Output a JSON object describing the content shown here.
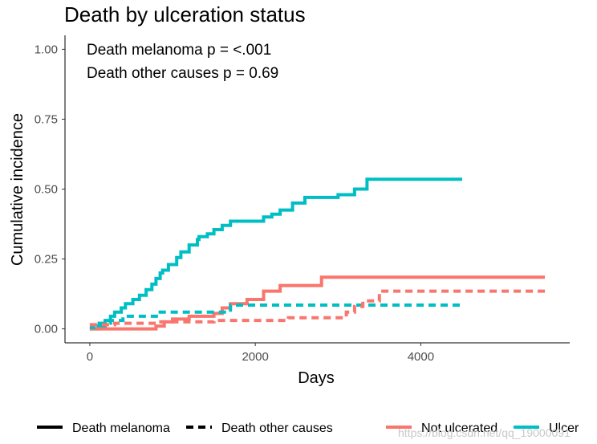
{
  "chart_data": {
    "type": "line",
    "step": true,
    "title": "Death by ulceration status",
    "xlabel": "Days",
    "ylabel": "Cumulative incidence",
    "xlim": [
      -300,
      5800
    ],
    "ylim": [
      -0.05,
      1.05
    ],
    "x_ticks": [
      0,
      2000,
      4000
    ],
    "x_tick_labels": [
      "0",
      "2000",
      "4000"
    ],
    "y_ticks": [
      0.0,
      0.25,
      0.5,
      0.75,
      1.0
    ],
    "y_tick_labels": [
      "0.00",
      "0.25",
      "0.50",
      "0.75",
      "1.00"
    ],
    "grid": false,
    "annotations": [
      "Death melanoma p = <.001",
      "Death other causes p = 0.69"
    ],
    "legend": {
      "position": "bottom",
      "linetype_entries": [
        {
          "label": "Death melanoma",
          "dash": "solid"
        },
        {
          "label": "Death other causes",
          "dash": "dashed"
        }
      ],
      "color_entries": [
        {
          "label": "Not ulcerated",
          "color": "#F8766D"
        },
        {
          "label": "Ulcer",
          "color": "#00BFC4"
        }
      ]
    },
    "series": [
      {
        "name": "Ulcer - Death melanoma",
        "group": "Ulcer",
        "cause": "Death melanoma",
        "color": "#00BFC4",
        "dash": "solid",
        "x": [
          0,
          100,
          185,
          250,
          300,
          380,
          430,
          520,
          600,
          680,
          750,
          800,
          850,
          880,
          950,
          1050,
          1100,
          1200,
          1300,
          1320,
          1420,
          1500,
          1600,
          1700,
          2100,
          2200,
          2300,
          2450,
          2600,
          3000,
          3200,
          3350,
          4500
        ],
        "y": [
          0.0,
          0.01,
          0.03,
          0.045,
          0.06,
          0.075,
          0.09,
          0.105,
          0.12,
          0.14,
          0.16,
          0.18,
          0.2,
          0.21,
          0.23,
          0.255,
          0.275,
          0.3,
          0.32,
          0.33,
          0.34,
          0.355,
          0.37,
          0.385,
          0.4,
          0.41,
          0.425,
          0.45,
          0.47,
          0.48,
          0.5,
          0.535,
          0.535
        ]
      },
      {
        "name": "Not ulcerated - Death melanoma",
        "group": "Not ulcerated",
        "cause": "Death melanoma",
        "color": "#F8766D",
        "dash": "solid",
        "x": [
          0,
          800,
          900,
          1000,
          1200,
          1500,
          1600,
          1700,
          1900,
          2100,
          2300,
          2800,
          5500
        ],
        "y": [
          0.0,
          0.01,
          0.025,
          0.035,
          0.045,
          0.055,
          0.075,
          0.09,
          0.105,
          0.135,
          0.155,
          0.185,
          0.185
        ]
      },
      {
        "name": "Ulcer - Death other causes",
        "group": "Ulcer",
        "cause": "Death other causes",
        "color": "#00BFC4",
        "dash": "dashed",
        "x": [
          0,
          50,
          250,
          400,
          850,
          1700,
          4500
        ],
        "y": [
          0.005,
          0.02,
          0.03,
          0.045,
          0.06,
          0.085,
          0.085
        ]
      },
      {
        "name": "Not ulcerated - Death other causes",
        "group": "Not ulcerated",
        "cause": "Death other causes",
        "color": "#F8766D",
        "dash": "dashed",
        "x": [
          0,
          300,
          800,
          1500,
          2400,
          3100,
          3200,
          3300,
          3500,
          5500
        ],
        "y": [
          0.015,
          0.02,
          0.025,
          0.03,
          0.04,
          0.06,
          0.08,
          0.1,
          0.135,
          0.135
        ]
      }
    ]
  },
  "watermark": "https://blog.csdn.net/qq_19000091"
}
